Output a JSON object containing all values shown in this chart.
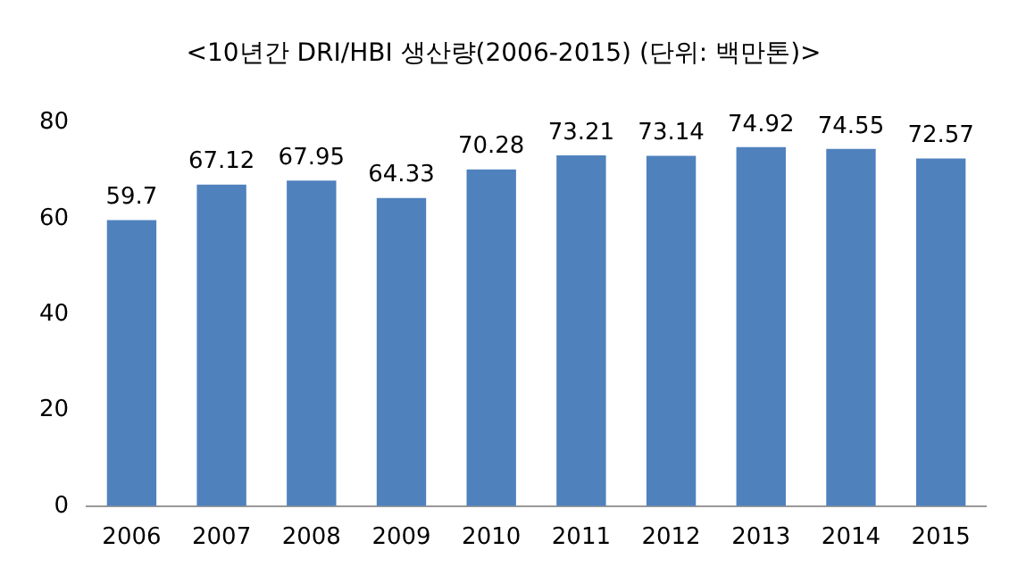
{
  "chart_data": {
    "type": "bar",
    "title": "<10년간 DRI/HBI 생산량(2006-2015) (단위: 백만톤)>",
    "categories": [
      "2006",
      "2007",
      "2008",
      "2009",
      "2010",
      "2011",
      "2012",
      "2013",
      "2014",
      "2015"
    ],
    "values": [
      59.7,
      67.12,
      67.95,
      64.33,
      70.28,
      73.21,
      73.14,
      74.92,
      74.55,
      72.57
    ],
    "color": "#4f81bd",
    "ylim": [
      0,
      80
    ],
    "yticks": [
      0,
      20,
      40,
      60,
      80
    ],
    "grid": false,
    "legend": false,
    "data_labels": true
  }
}
